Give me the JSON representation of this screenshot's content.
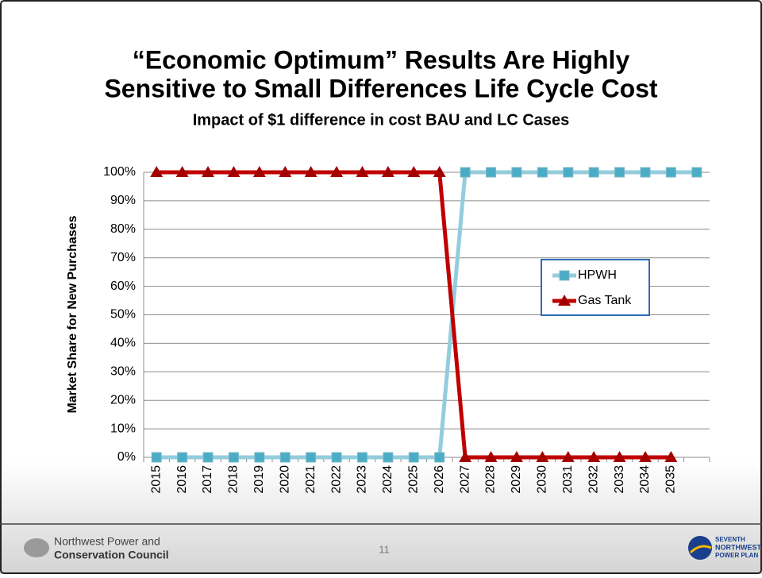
{
  "chart_data": {
    "type": "line",
    "title": [
      "“Economic Optimum” Results Are Highly",
      "Sensitive to Small Differences Life Cycle Cost"
    ],
    "subtitle": "Impact of $1 difference in cost BAU and LC Cases",
    "y_label": "Market Share for New Purchases",
    "categories": [
      "2015",
      "2016",
      "2017",
      "2018",
      "2019",
      "2020",
      "2021",
      "2022",
      "2023",
      "2024",
      "2025",
      "2026",
      "2027",
      "2028",
      "2029",
      "2030",
      "2031",
      "2032",
      "2033",
      "2034",
      "2035",
      null
    ],
    "series": [
      {
        "name": "HPWH",
        "color": "#93cddd",
        "marker_color": "#4bacc6",
        "marker": "square",
        "values": [
          0,
          0,
          0,
          0,
          0,
          0,
          0,
          0,
          0,
          0,
          0,
          0,
          100,
          100,
          100,
          100,
          100,
          100,
          100,
          100,
          100,
          100
        ]
      },
      {
        "name": "Gas Tank",
        "color": "#c00000",
        "marker_color": "#a50000",
        "marker": "triangle",
        "values": [
          100,
          100,
          100,
          100,
          100,
          100,
          100,
          100,
          100,
          100,
          100,
          100,
          0,
          0,
          0,
          0,
          0,
          0,
          0,
          0,
          0,
          null
        ]
      }
    ],
    "ylim": [
      0,
      100
    ],
    "yticks": [
      {
        "value": 0,
        "label": "0%"
      },
      {
        "value": 10,
        "label": "10%"
      },
      {
        "value": 20,
        "label": "20%"
      },
      {
        "value": 30,
        "label": "30%"
      },
      {
        "value": 40,
        "label": "40%"
      },
      {
        "value": 50,
        "label": "50%"
      },
      {
        "value": 60,
        "label": "60%"
      },
      {
        "value": 70,
        "label": "70%"
      },
      {
        "value": 80,
        "label": "80%"
      },
      {
        "value": 90,
        "label": "90%"
      },
      {
        "value": 100,
        "label": "100%"
      }
    ],
    "grid": true,
    "legend": "right"
  },
  "footer": {
    "org": [
      "Northwest Power and",
      "Conservation Council"
    ],
    "page": "11",
    "plan": [
      "SEVENTH",
      "NORTHWEST",
      "POWER PLAN"
    ]
  }
}
